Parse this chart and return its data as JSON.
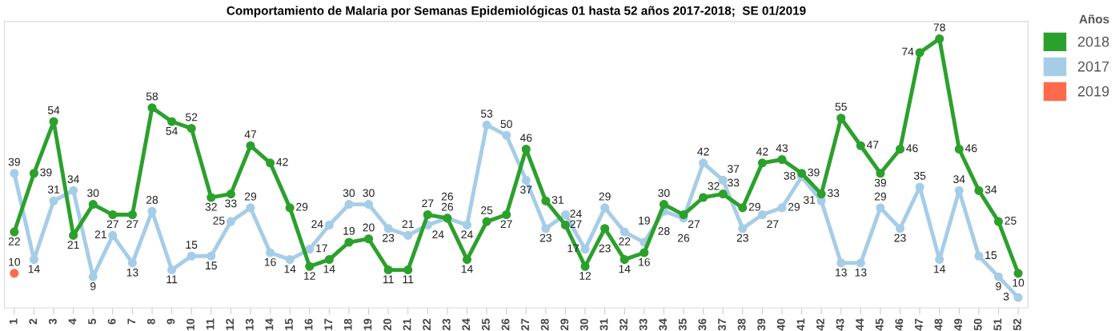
{
  "chart_data": {
    "type": "line",
    "title": "Comportamiento de Malaria por Semanas Epidemiológicas 01 hasta 52 años 2017-2018;  SE 01/2019",
    "legend_title": "Años",
    "legend": "top right",
    "grid": false,
    "marker": "circle",
    "line_style": "solid",
    "data_labels": true,
    "tick_labels": "x",
    "ylim": [
      0,
      83
    ],
    "categories": [
      "1",
      "2",
      "3",
      "4",
      "5",
      "6",
      "7",
      "8",
      "9",
      "10",
      "11",
      "12",
      "13",
      "14",
      "15",
      "16",
      "17",
      "18",
      "19",
      "20",
      "21",
      "22",
      "23",
      "24",
      "25",
      "26",
      "27",
      "28",
      "29",
      "30",
      "31",
      "32",
      "33",
      "34",
      "35",
      "36",
      "37",
      "38",
      "39",
      "40",
      "41",
      "42",
      "43",
      "44",
      "45",
      "46",
      "47",
      "48",
      "49",
      "50",
      "51",
      "52"
    ],
    "series": [
      {
        "name": "2018",
        "color": "#2ca02c",
        "values": [
          22,
          39,
          54,
          21,
          30,
          27,
          27,
          58,
          54,
          52,
          32,
          33,
          47,
          42,
          29,
          12,
          14,
          19,
          20,
          11,
          11,
          27,
          26,
          14,
          25,
          27,
          46,
          31,
          24,
          12,
          23,
          14,
          16,
          30,
          27,
          32,
          33,
          29,
          42,
          43,
          39,
          33,
          55,
          47,
          39,
          46,
          74,
          78,
          46,
          34,
          25,
          10
        ]
      },
      {
        "name": "2017",
        "color": "#a6cde8",
        "values": [
          39,
          14,
          31,
          34,
          9,
          21,
          13,
          28,
          11,
          15,
          15,
          25,
          29,
          16,
          14,
          17,
          24,
          30,
          30,
          23,
          21,
          24,
          26,
          24,
          53,
          50,
          37,
          23,
          27,
          17,
          29,
          22,
          19,
          28,
          26,
          42,
          37,
          23,
          27,
          29,
          38,
          31,
          13,
          13,
          29,
          23,
          35,
          14,
          34,
          15,
          9,
          3
        ]
      },
      {
        "name": "2019",
        "color": "#ff6a4d",
        "values": [
          10,
          null,
          null,
          null,
          null,
          null,
          null,
          null,
          null,
          null,
          null,
          null,
          null,
          null,
          null,
          null,
          null,
          null,
          null,
          null,
          null,
          null,
          null,
          null,
          null,
          null,
          null,
          null,
          null,
          null,
          null,
          null,
          null,
          null,
          null,
          null,
          null,
          null,
          null,
          null,
          null,
          null,
          null,
          null,
          null,
          null,
          null,
          null,
          null,
          null,
          null,
          null
        ]
      }
    ]
  }
}
